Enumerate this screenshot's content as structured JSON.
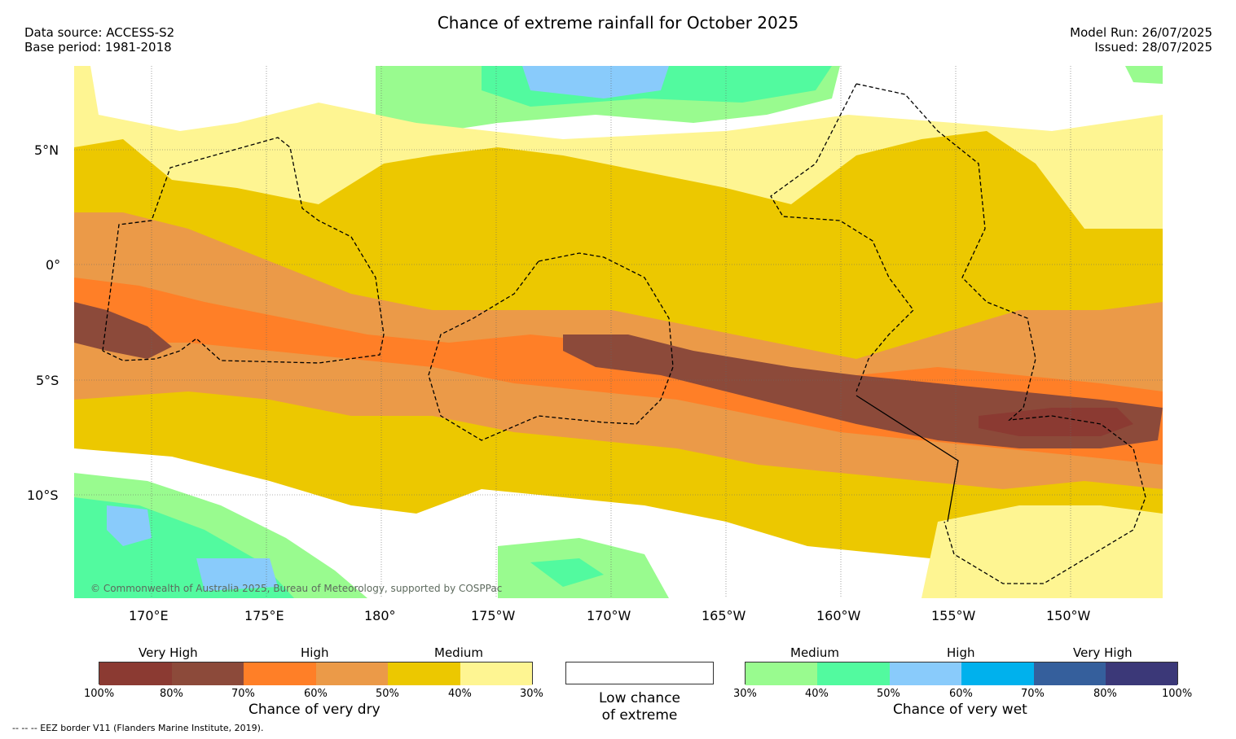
{
  "title": "Chance of extreme rainfall for October 2025",
  "meta": {
    "data_source": "Data source: ACCESS-S2",
    "base_period": "Base period: 1981-2018",
    "model_run": "Model Run: 26/07/2025",
    "issued": "Issued: 28/07/2025"
  },
  "map": {
    "lat_labels": [
      "5°N",
      "0°",
      "5°S",
      "10°S"
    ],
    "lon_labels": [
      "170°E",
      "175°E",
      "180°",
      "175°W",
      "170°W",
      "165°W",
      "160°W",
      "155°W",
      "150°W"
    ],
    "copyright": "© Commonwealth of Australia 2025, Bureau of Meteorology, supported by COSPPac"
  },
  "legend_dry": {
    "headers": [
      "Very High",
      "High",
      "Medium"
    ],
    "colors": [
      "#8b3a32",
      "#8c4a3a",
      "#ff7f27",
      "#eb9a48",
      "#ecc800",
      "#fef592"
    ],
    "ticks": [
      "100%",
      "80%",
      "70%",
      "60%",
      "50%",
      "40%",
      "30%"
    ],
    "label": "Chance of very dry"
  },
  "legend_neutral": {
    "line1": "Low chance",
    "line2": "of extreme"
  },
  "legend_wet": {
    "headers": [
      "Medium",
      "High",
      "Very High"
    ],
    "colors": [
      "#99fb8f",
      "#52fa9f",
      "#89cbfb",
      "#00b1ed",
      "#355f9c",
      "#3b3878"
    ],
    "ticks": [
      "30%",
      "40%",
      "50%",
      "60%",
      "70%",
      "80%",
      "100%"
    ],
    "label": "Chance of very wet"
  },
  "footnote": "-- -- -- EEZ border V11 (Flanders Marine Institute, 2019)."
}
